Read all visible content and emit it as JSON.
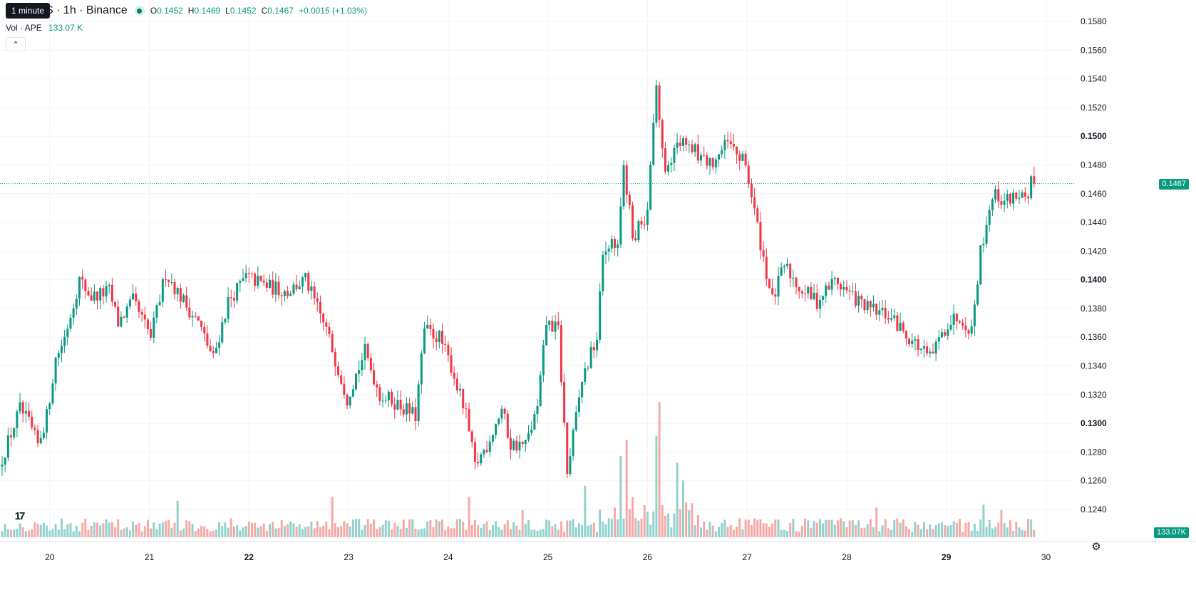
{
  "tooltip": "1 minute",
  "header": {
    "symbol": "TetherUS",
    "interval": "1h",
    "exchange": "Binance",
    "title": "TetherUS · 1h · Binance",
    "open_label": "O",
    "open": "0.1452",
    "high_label": "H",
    "high": "0.1469",
    "low_label": "L",
    "low": "0.1452",
    "close_label": "C",
    "close": "0.1467",
    "change": "+0.0015 (+1.03%)"
  },
  "volume_legend": {
    "label": "Vol · APE",
    "value": "133.07 K"
  },
  "collapse_icon": "chevron-up",
  "logo_text": "17",
  "settings_icon": "gear",
  "colors": {
    "up": "#089981",
    "down": "#f23645",
    "up_volume": "#92d2cc",
    "down_volume": "#f7a9a7",
    "grid": "#f0f3fa",
    "text": "#131722"
  },
  "chart_data": {
    "type": "candlestick",
    "interval": "1h",
    "y_range": [
      0.124,
      0.158
    ],
    "y_ticks": [
      "0.1580",
      "0.1560",
      "0.1540",
      "0.1520",
      "0.1500",
      "0.1480",
      "0.1460",
      "0.1440",
      "0.1420",
      "0.1400",
      "0.1380",
      "0.1360",
      "0.1340",
      "0.1320",
      "0.1300",
      "0.1280",
      "0.1260",
      "0.1240"
    ],
    "y_ticks_bold": [
      "0.1500",
      "0.1400",
      "0.1300"
    ],
    "x_labels": [
      "20",
      "21",
      "22",
      "23",
      "24",
      "25",
      "26",
      "27",
      "28",
      "29",
      "30"
    ],
    "x_labels_bold": [
      "22",
      "29"
    ],
    "current_price": "0.1467",
    "volume_last": "133.07K",
    "anchors": [
      [
        0,
        0.127
      ],
      [
        7,
        0.131
      ],
      [
        10,
        0.13
      ],
      [
        13,
        0.1285
      ],
      [
        16,
        0.1305
      ],
      [
        19,
        0.1345
      ],
      [
        22,
        0.136
      ],
      [
        27,
        0.14
      ],
      [
        31,
        0.1388
      ],
      [
        37,
        0.1392
      ],
      [
        40,
        0.137
      ],
      [
        45,
        0.1385
      ],
      [
        51,
        0.136
      ],
      [
        56,
        0.1405
      ],
      [
        62,
        0.1385
      ],
      [
        67,
        0.137
      ],
      [
        72,
        0.1345
      ],
      [
        77,
        0.1385
      ],
      [
        83,
        0.1402
      ],
      [
        91,
        0.1395
      ],
      [
        97,
        0.1392
      ],
      [
        103,
        0.14
      ],
      [
        110,
        0.1365
      ],
      [
        117,
        0.1318
      ],
      [
        123,
        0.135
      ],
      [
        128,
        0.132
      ],
      [
        133,
        0.1315
      ],
      [
        140,
        0.1305
      ],
      [
        143,
        0.1365
      ],
      [
        148,
        0.136
      ],
      [
        152,
        0.134
      ],
      [
        157,
        0.1305
      ],
      [
        160,
        0.127
      ],
      [
        164,
        0.1285
      ],
      [
        169,
        0.131
      ],
      [
        172,
        0.1285
      ],
      [
        177,
        0.1285
      ],
      [
        181,
        0.131
      ],
      [
        184,
        0.137
      ],
      [
        188,
        0.1365
      ],
      [
        191,
        0.1265
      ],
      [
        196,
        0.133
      ],
      [
        201,
        0.136
      ],
      [
        203,
        0.1415
      ],
      [
        208,
        0.143
      ],
      [
        210,
        0.148
      ],
      [
        213,
        0.143
      ],
      [
        218,
        0.1445
      ],
      [
        221,
        0.154
      ],
      [
        224,
        0.147
      ],
      [
        228,
        0.15
      ],
      [
        234,
        0.149
      ],
      [
        239,
        0.148
      ],
      [
        245,
        0.1495
      ],
      [
        251,
        0.148
      ],
      [
        257,
        0.1415
      ],
      [
        260,
        0.1385
      ],
      [
        264,
        0.141
      ],
      [
        269,
        0.1395
      ],
      [
        275,
        0.1385
      ],
      [
        281,
        0.14
      ],
      [
        286,
        0.139
      ],
      [
        292,
        0.138
      ],
      [
        299,
        0.1375
      ],
      [
        306,
        0.136
      ],
      [
        313,
        0.1345
      ],
      [
        319,
        0.137
      ],
      [
        323,
        0.1375
      ],
      [
        327,
        0.1365
      ],
      [
        330,
        0.142
      ],
      [
        334,
        0.146
      ],
      [
        338,
        0.1455
      ],
      [
        343,
        0.146
      ],
      [
        346,
        0.1452
      ],
      [
        347,
        0.1467
      ]
    ],
    "volume_spikes": [
      [
        221,
        1.0
      ],
      [
        220,
        0.75
      ],
      [
        210,
        0.72
      ],
      [
        208,
        0.6
      ],
      [
        227,
        0.55
      ],
      [
        229,
        0.42
      ],
      [
        196,
        0.38
      ],
      [
        111,
        0.3
      ],
      [
        59,
        0.27
      ],
      [
        157,
        0.3
      ],
      [
        175,
        0.2
      ],
      [
        294,
        0.22
      ],
      [
        336,
        0.2
      ],
      [
        330,
        0.24
      ]
    ]
  }
}
